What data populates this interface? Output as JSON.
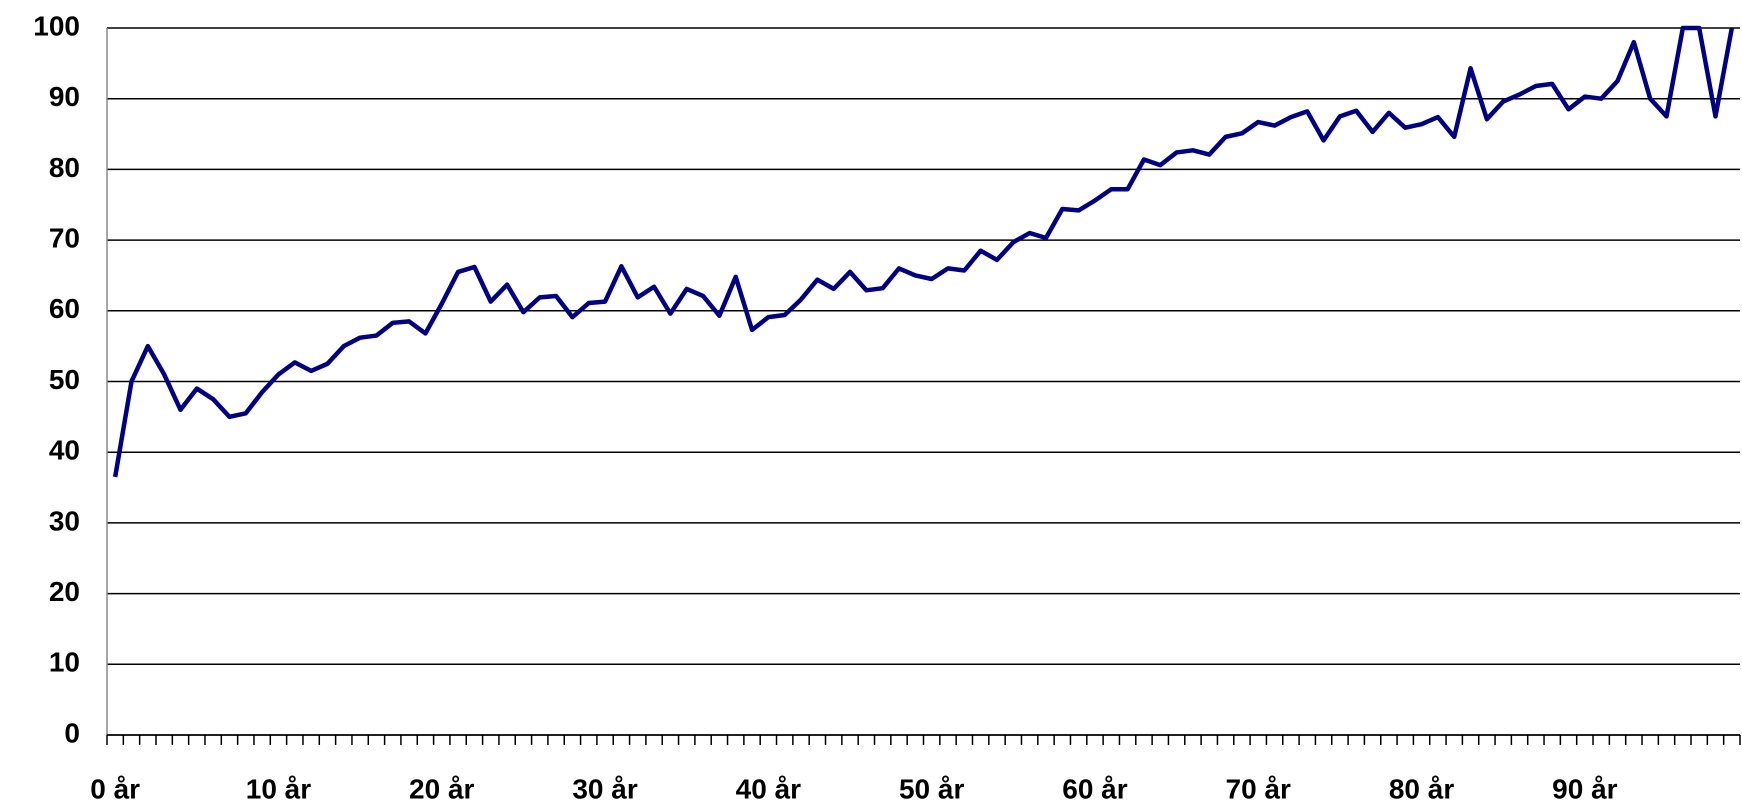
{
  "chart_data": {
    "type": "line",
    "categories": [
      "0 år",
      null,
      null,
      null,
      null,
      null,
      null,
      null,
      null,
      null,
      "10 år",
      null,
      null,
      null,
      null,
      null,
      null,
      null,
      null,
      null,
      "20 år",
      null,
      null,
      null,
      null,
      null,
      null,
      null,
      null,
      null,
      "30 år",
      null,
      null,
      null,
      null,
      null,
      null,
      null,
      null,
      null,
      "40 år",
      null,
      null,
      null,
      null,
      null,
      null,
      null,
      null,
      null,
      "50 år",
      null,
      null,
      null,
      null,
      null,
      null,
      null,
      null,
      null,
      "60 år",
      null,
      null,
      null,
      null,
      null,
      null,
      null,
      null,
      null,
      "70 år",
      null,
      null,
      null,
      null,
      null,
      null,
      null,
      null,
      null,
      "80 år",
      null,
      null,
      null,
      null,
      null,
      null,
      null,
      null,
      null,
      "90 år",
      null,
      null,
      null,
      null,
      null,
      null,
      null,
      null,
      null
    ],
    "series": [
      {
        "color": "#000080",
        "values": [
          36.5,
          50,
          55,
          51,
          46,
          49,
          47.5,
          45,
          45.5,
          48.5,
          51,
          52.7,
          51.5,
          52.5,
          55,
          56.2,
          56.5,
          58.3,
          58.5,
          56.8,
          61,
          65.5,
          66.2,
          61.3,
          63.7,
          59.8,
          61.9,
          62.1,
          59.1,
          61.1,
          61.3,
          66.3,
          61.9,
          63.4,
          59.6,
          63.1,
          62.1,
          59.3,
          64.8,
          57.3,
          59.1,
          59.4,
          61.6,
          64.4,
          63.1,
          65.5,
          62.9,
          63.2,
          66,
          65,
          64.5,
          66,
          65.7,
          68.5,
          67.2,
          69.7,
          71,
          70.3,
          74.4,
          74.2,
          75.6,
          77.2,
          77.2,
          81.4,
          80.6,
          82.4,
          82.7,
          82.1,
          84.6,
          85.1,
          86.7,
          86.2,
          87.4,
          88.2,
          84.1,
          87.5,
          88.3,
          85.3,
          88,
          85.9,
          86.4,
          87.4,
          84.6,
          94.3,
          87.1,
          89.6,
          90.6,
          91.8,
          92.1,
          88.5,
          90.3,
          90,
          92.5,
          98,
          90,
          87.5,
          100,
          100,
          87.5,
          100
        ]
      }
    ],
    "ylim": [
      0,
      100
    ],
    "yticks": [
      0,
      10,
      20,
      30,
      40,
      50,
      60,
      70,
      80,
      90,
      100
    ],
    "grid": true
  }
}
